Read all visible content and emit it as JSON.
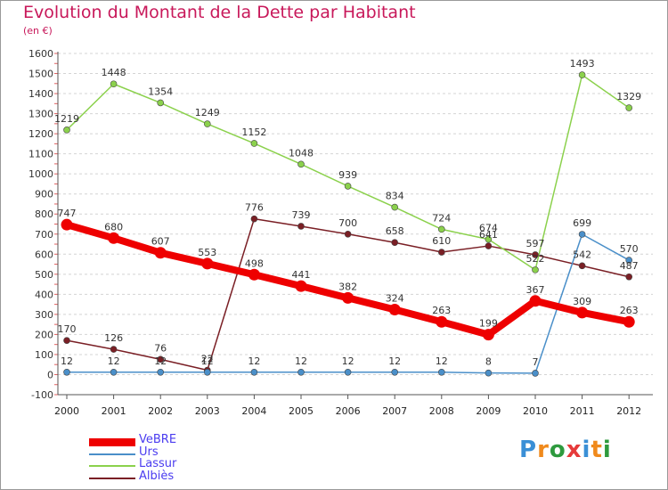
{
  "title": "Evolution du Montant de la Dette par Habitant",
  "subtitle": "(en €)",
  "logo": {
    "text": "Proxiti",
    "letters": [
      "P",
      "r",
      "o",
      "x",
      "i",
      "t",
      "i"
    ],
    "colors": [
      "#3a8fd6",
      "#f08a1c",
      "#2e9a3e",
      "#e63a3a",
      "#3a8fd6",
      "#f08a1c",
      "#2e9a3e"
    ]
  },
  "chart_data": {
    "type": "line",
    "x": [
      "2000",
      "2001",
      "2002",
      "2003",
      "2004",
      "2005",
      "2006",
      "2007",
      "2008",
      "2009",
      "2010",
      "2011",
      "2012"
    ],
    "ylim": [
      -100,
      1600
    ],
    "yticks": [
      -100,
      0,
      100,
      200,
      300,
      400,
      500,
      600,
      700,
      800,
      900,
      1000,
      1100,
      1200,
      1300,
      1400,
      1500,
      1600
    ],
    "grid": "horizontal dashed",
    "legend_position": "bottom-left",
    "series": [
      {
        "name": "VeBRE",
        "color": "#ee0000",
        "values": [
          747,
          680,
          607,
          553,
          498,
          441,
          382,
          324,
          263,
          199,
          367,
          309,
          263
        ]
      },
      {
        "name": "Urs",
        "color": "#4a8fc9",
        "values": [
          12,
          12,
          12,
          12,
          12,
          12,
          12,
          12,
          12,
          8,
          7,
          699,
          570
        ]
      },
      {
        "name": "Lassur",
        "color": "#8bd14c",
        "values": [
          1219,
          1448,
          1354,
          1249,
          1152,
          1048,
          939,
          834,
          724,
          674,
          522,
          1493,
          1329
        ]
      },
      {
        "name": "Albiès",
        "color": "#7a1f25",
        "values": [
          170,
          126,
          76,
          22,
          776,
          739,
          700,
          658,
          610,
          641,
          597,
          542,
          487
        ]
      }
    ]
  }
}
